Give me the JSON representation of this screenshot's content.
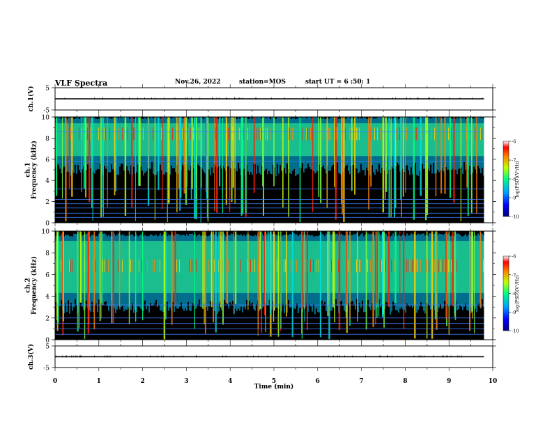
{
  "header": {
    "title": "VLF Spectra",
    "date": "Nov.26, 2022",
    "station": "station=MOS",
    "start": "start UT = 6 :50: 1"
  },
  "chart_data": [
    {
      "type": "line",
      "ylabel": "ch.1(V)",
      "ylim": [
        -5,
        5
      ],
      "yticks": [
        "5",
        "-5"
      ],
      "series": [
        {
          "values": [
            0,
            0
          ]
        }
      ],
      "x": [
        0,
        9.8
      ]
    },
    {
      "type": "heatmap",
      "ylabel": "ch.1\nFrequency (kHz)",
      "ylim": [
        0,
        10
      ],
      "yticks": [
        "0",
        "2",
        "4",
        "6",
        "8",
        "10"
      ],
      "colorbar": {
        "label": "log(PSD)(V²/Hz)",
        "range": [
          -10,
          -6
        ],
        "ticks": [
          "-6",
          "-7",
          "-8",
          "-9",
          "-10"
        ]
      },
      "bands_khz": [
        0.5,
        0.9,
        1.4,
        1.8,
        2.2,
        3.2,
        5.8,
        8.6
      ],
      "colormap": [
        "#000000",
        "#0000ff",
        "#00a0ff",
        "#00ff80",
        "#c0ff00",
        "#ffa000",
        "#ff0000"
      ]
    },
    {
      "type": "heatmap",
      "ylabel": "ch.2\nFrequency (kHz)",
      "ylim": [
        0,
        10
      ],
      "yticks": [
        "0",
        "2",
        "4",
        "6",
        "8",
        "10"
      ],
      "colorbar": {
        "label": "log(PSD)(V²/Hz)",
        "range": [
          -10,
          -6
        ],
        "ticks": [
          "-6",
          "-7",
          "-8",
          "-9",
          "-10"
        ]
      },
      "bands_khz": [
        0.5,
        1.0,
        1.5,
        2.0,
        3.2
      ],
      "colormap": [
        "#000000",
        "#0000ff",
        "#00a0ff",
        "#00ff80",
        "#c0ff00",
        "#ffa000",
        "#ff0000"
      ]
    },
    {
      "type": "line",
      "ylabel": "ch.3(V)",
      "ylim": [
        -5,
        5
      ],
      "yticks": [
        "5",
        "-5"
      ],
      "series": [
        {
          "values": [
            0,
            0
          ]
        }
      ],
      "x": [
        0,
        9.8
      ]
    }
  ],
  "xaxis": {
    "label": "Time (min)",
    "range": [
      0,
      10
    ],
    "ticks": [
      "0",
      "1",
      "2",
      "3",
      "4",
      "5",
      "6",
      "7",
      "8",
      "9",
      "10"
    ]
  }
}
